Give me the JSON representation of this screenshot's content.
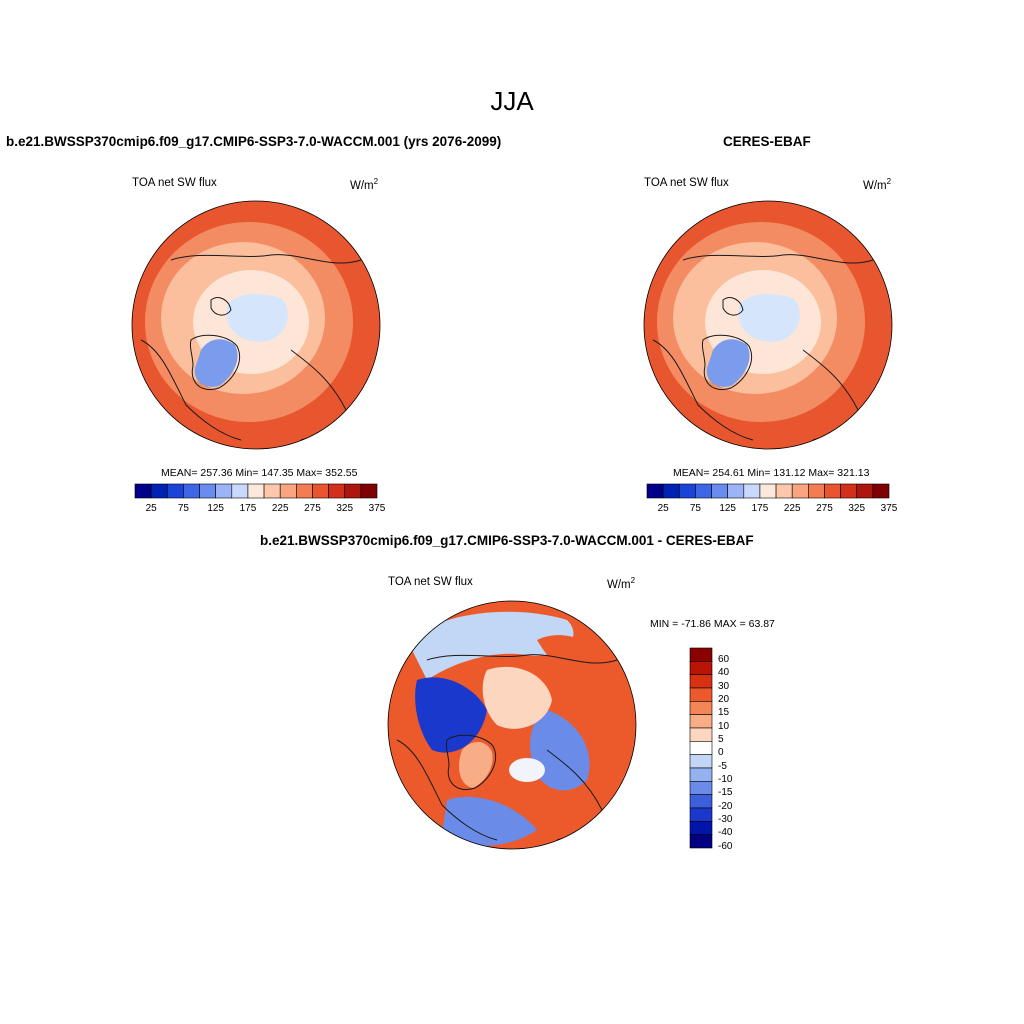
{
  "main_title": "JJA",
  "panels": [
    {
      "title": "b.e21.BWSSP370cmip6.f09_g17.CMIP6-SSP3-7.0-WACCM.001 (yrs 2076-2099)",
      "variable": "TOA net SW flux",
      "units_base": "W/m",
      "units_exp": "2",
      "stats": "MEAN= 257.36  Min= 147.35  Max= 352.55"
    },
    {
      "title": "CERES-EBAF",
      "variable": "TOA net SW flux",
      "units_base": "W/m",
      "units_exp": "2",
      "stats": "MEAN= 254.61  Min= 131.12  Max= 321.13"
    },
    {
      "title": "b.e21.BWSSP370cmip6.f09_g17.CMIP6-SSP3-7.0-WACCM.001 - CERES-EBAF",
      "variable": "TOA net SW flux",
      "units_base": "W/m",
      "units_exp": "2",
      "stats": "MIN = -71.86 MAX =  63.87"
    }
  ],
  "abs_colorbar": {
    "colors": [
      "#00008b",
      "#0022b4",
      "#1a44d8",
      "#3d66e8",
      "#6a8cef",
      "#9bb4f5",
      "#c8d9fb",
      "#fde8dc",
      "#fcc7ad",
      "#f9a582",
      "#f47c55",
      "#e9552e",
      "#d2301a",
      "#ad160d",
      "#7f0000"
    ],
    "tick_labels": [
      "25",
      "75",
      "125",
      "175",
      "225",
      "275",
      "325",
      "375"
    ]
  },
  "diff_colorbar": {
    "colors": [
      "#8b0000",
      "#b81504",
      "#d83210",
      "#ec5a2c",
      "#f38556",
      "#f9ad86",
      "#fdd6bf",
      "#ffffff",
      "#c2d6f5",
      "#93b2ef",
      "#6a8ce8",
      "#3c5fdc",
      "#1a38cc",
      "#0016a8",
      "#000080"
    ],
    "tick_labels": [
      "60",
      "40",
      "30",
      "20",
      "15",
      "10",
      "5",
      "0",
      "-5",
      "-10",
      "-15",
      "-20",
      "-30",
      "-40",
      "-60"
    ]
  },
  "map_colors": {
    "outer": "#e8562f",
    "mid": "#f48c63",
    "light": "#fbbf9d",
    "pale": "#fde6d8",
    "ice": "#d5e5fb",
    "greenland": "#7b9cec",
    "land_line": "#1a1a1a"
  },
  "diff_colors": {
    "warm": "#ec5a2c",
    "warm_light": "#f9ad86",
    "peach": "#fdd6bf",
    "neutral": "#f1f4fa",
    "cool_light": "#c2d6f5",
    "cool": "#6a8ce8",
    "deep": "#1a38cc"
  }
}
